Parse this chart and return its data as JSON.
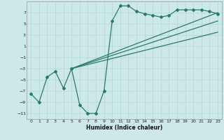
{
  "title": "",
  "xlabel": "Humidex (Indice chaleur)",
  "bg_color": "#cce8e8",
  "grid_color": "#b8d8d8",
  "line_color": "#2a7a6a",
  "xlim": [
    -0.5,
    23.5
  ],
  "ylim": [
    -12,
    9
  ],
  "xticks": [
    0,
    1,
    2,
    3,
    4,
    5,
    6,
    7,
    8,
    9,
    10,
    11,
    12,
    13,
    14,
    15,
    16,
    17,
    18,
    19,
    20,
    21,
    22,
    23
  ],
  "yticks": [
    -11,
    -9,
    -7,
    -5,
    -3,
    -1,
    1,
    3,
    5,
    7
  ],
  "scatter_x": [
    0,
    1,
    2,
    3,
    4,
    5,
    6,
    7,
    8,
    9,
    10,
    11,
    12,
    13,
    14,
    15,
    16,
    17,
    18,
    19,
    20,
    21,
    22,
    23
  ],
  "scatter_y": [
    -7.5,
    -9,
    -4.5,
    -3.5,
    -6.5,
    -3,
    -9.5,
    -11,
    -11,
    -7,
    5.5,
    8.2,
    8.2,
    7.2,
    6.8,
    6.5,
    6.2,
    6.5,
    7.5,
    7.5,
    7.5,
    7.5,
    7.2,
    6.8
  ],
  "line1_x": [
    5,
    23
  ],
  "line1_y": [
    -3.0,
    7.0
  ],
  "line2_x": [
    5,
    23
  ],
  "line2_y": [
    -3.0,
    3.5
  ],
  "line3_x": [
    5,
    23
  ],
  "line3_y": [
    -3.0,
    5.5
  ]
}
